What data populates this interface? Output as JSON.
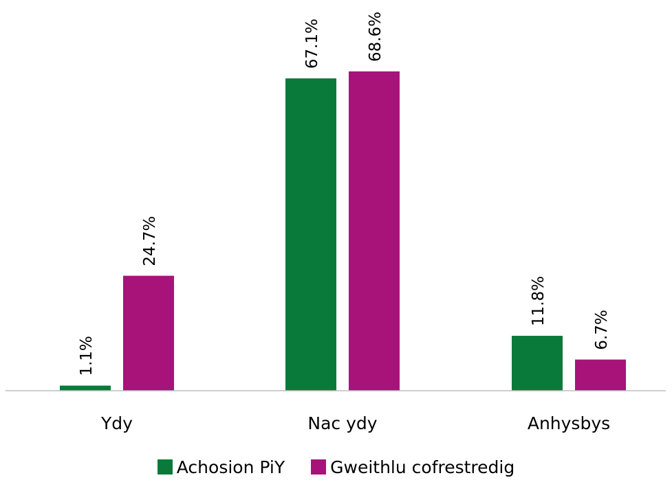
{
  "chart_data": {
    "type": "bar",
    "categories": [
      "Ydy",
      "Nac ydy",
      "Anhysbys"
    ],
    "series": [
      {
        "name": "Achosion PiY",
        "values": [
          1.1,
          67.1,
          11.8
        ],
        "labels": [
          "1.1%",
          "67.1%",
          "11.8%"
        ],
        "color": "#0a7a3a"
      },
      {
        "name": "Gweithlu cofrestredig",
        "values": [
          24.7,
          68.6,
          6.7
        ],
        "labels": [
          "24.7%",
          "68.6%",
          "6.7%"
        ],
        "color": "#a8137a"
      }
    ],
    "ylim": [
      0,
      68.6
    ],
    "unit": "%",
    "grid": false,
    "legend": "bottom"
  }
}
